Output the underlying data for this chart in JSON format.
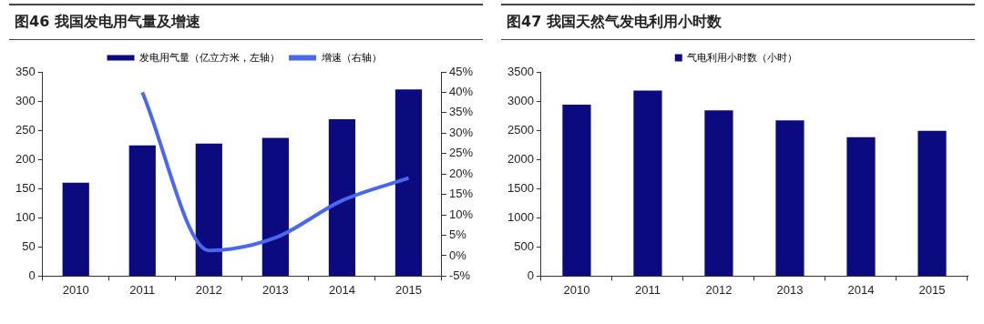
{
  "chart_data": [
    {
      "type": "bar",
      "title": "图46  我国发电用气量及增速",
      "categories": [
        "2010",
        "2011",
        "2012",
        "2013",
        "2014",
        "2015"
      ],
      "series": [
        {
          "name": "发电用气量（亿立方米，左轴）",
          "color": "#0b0b7f",
          "values": [
            160,
            224,
            227,
            237,
            269,
            320
          ]
        },
        {
          "name": "增速（右轴）",
          "type": "line",
          "axis": "y2",
          "color": "#4a67f0",
          "values": [
            null,
            40,
            1.3,
            4.4,
            13.5,
            19
          ]
        }
      ],
      "ylim": [
        0,
        350
      ],
      "yticks": [
        0,
        50,
        100,
        150,
        200,
        250,
        300,
        350
      ],
      "y2lim": [
        -5,
        45
      ],
      "y2ticks": [
        {
          "value": -5,
          "label": "-5%"
        },
        {
          "value": 0,
          "label": "0%"
        },
        {
          "value": 5,
          "label": "5%"
        },
        {
          "value": 10,
          "label": "10%"
        },
        {
          "value": 15,
          "label": "15%"
        },
        {
          "value": 20,
          "label": "20%"
        },
        {
          "value": 25,
          "label": "25%"
        },
        {
          "value": 30,
          "label": "30%"
        },
        {
          "value": 35,
          "label": "35%"
        },
        {
          "value": 40,
          "label": "40%"
        },
        {
          "value": 45,
          "label": "45%"
        }
      ],
      "legend": "top",
      "marker": "none",
      "grid": false
    },
    {
      "type": "bar",
      "title": "图47 我国天然气发电利用小时数",
      "categories": [
        "2010",
        "2011",
        "2012",
        "2013",
        "2014",
        "2015"
      ],
      "series": [
        {
          "name": "气电利用小时数（小时）",
          "color": "#0b0b7f",
          "values": [
            2940,
            3180,
            2840,
            2670,
            2380,
            2490
          ]
        }
      ],
      "ylim": [
        0,
        3500
      ],
      "yticks": [
        0,
        500,
        1000,
        1500,
        2000,
        2500,
        3000,
        3500
      ],
      "legend": "top",
      "grid": false
    }
  ]
}
